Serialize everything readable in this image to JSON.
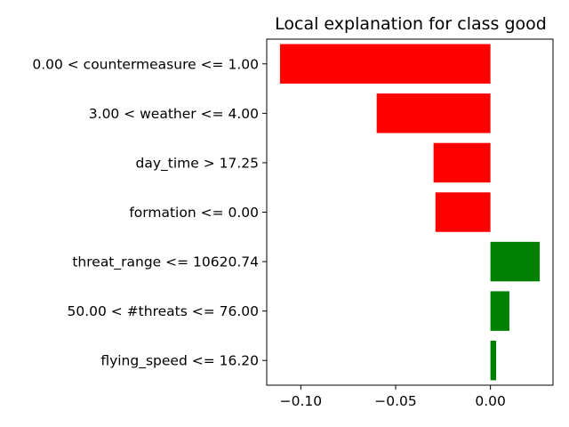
{
  "chart_data": {
    "type": "bar",
    "orientation": "horizontal",
    "title": "Local explanation for class good",
    "xlabel": "",
    "ylabel": "",
    "categories": [
      "0.00 < countermeasure <= 1.00",
      "3.00 < weather <= 4.00",
      "day_time > 17.25",
      "formation <= 0.00",
      "threat_range <= 10620.74",
      "50.00 < #threats <= 76.00",
      "flying_speed <= 16.20"
    ],
    "values": [
      -0.111,
      -0.06,
      -0.03,
      -0.029,
      0.026,
      0.01,
      0.003
    ],
    "xlim": [
      -0.118,
      0.033
    ],
    "xticks": [
      -0.1,
      -0.05,
      0.0
    ],
    "xtick_labels": [
      "−0.10",
      "−0.05",
      "0.00"
    ],
    "grid": false,
    "colors": {
      "negative": "#ff0000",
      "positive": "#008000"
    }
  }
}
